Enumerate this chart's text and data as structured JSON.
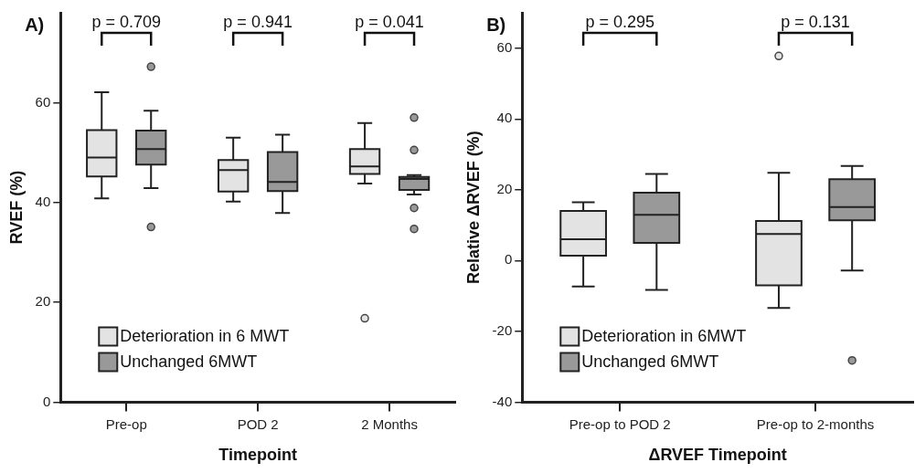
{
  "chart_data": [
    {
      "type": "box",
      "title": "A)",
      "xlabel": "Timepoint",
      "ylabel": "RVEF (%)",
      "categories": [
        "Pre-op",
        "POD 2",
        "2 Months"
      ],
      "ylim": [
        0,
        78
      ],
      "yticks": [
        0,
        20,
        40,
        60
      ],
      "legend": "bottom left",
      "grid": false,
      "annotations": [
        "p = 0.709",
        "p = 0.941",
        "p = 0.041"
      ],
      "series": [
        {
          "name": "Deterioration in 6 MWT",
          "color": "#e3e3e3",
          "boxes": [
            {
              "low": 40.8,
              "q1": 45.2,
              "median": 49.0,
              "q3": 54.5,
              "high": 62.1
            },
            {
              "low": 40.2,
              "q1": 42.2,
              "median": 46.5,
              "q3": 48.5,
              "high": 53.0
            },
            {
              "low": 43.8,
              "q1": 45.7,
              "median": 47.2,
              "q3": 50.7,
              "high": 55.9,
              "outliers": [
                16.8
              ]
            }
          ]
        },
        {
          "name": "Unchanged 6MWT",
          "color": "#999999",
          "boxes": [
            {
              "low": 42.9,
              "q1": 47.6,
              "median": 50.7,
              "q3": 54.4,
              "high": 58.4,
              "outliers": [
                67.2,
                35.1
              ]
            },
            {
              "low": 37.9,
              "q1": 42.3,
              "median": 44.1,
              "q3": 50.1,
              "high": 53.6
            },
            {
              "low": 41.6,
              "q1": 42.5,
              "median": 44.7,
              "q3": 45.1,
              "high": 45.5,
              "outliers": [
                57.0,
                50.5,
                38.9,
                34.7
              ]
            }
          ]
        }
      ]
    },
    {
      "type": "box",
      "title": "B)",
      "xlabel": "ΔRVEF Timepoint",
      "ylabel": "Relative ΔRVEF (%)",
      "categories": [
        "Pre-op to POD 2",
        "Pre-op to 2-months"
      ],
      "ylim": [
        -40,
        70
      ],
      "yticks": [
        -40,
        -20,
        0,
        20,
        40,
        60
      ],
      "legend": "bottom left",
      "grid": false,
      "annotations": [
        "p = 0.295",
        "p = 0.131"
      ],
      "series": [
        {
          "name": "Deterioration in 6MWT",
          "color": "#e3e3e3",
          "boxes": [
            {
              "low": -7.3,
              "q1": 1.4,
              "median": 6.0,
              "q3": 14.0,
              "high": 16.5
            },
            {
              "low": -13.4,
              "q1": -7.0,
              "median": 7.5,
              "q3": 11.2,
              "high": 24.8,
              "outliers": [
                57.8
              ]
            }
          ]
        },
        {
          "name": "Unchanged 6MWT",
          "color": "#999999",
          "boxes": [
            {
              "low": -8.3,
              "q1": 5.0,
              "median": 12.9,
              "q3": 19.2,
              "high": 24.5
            },
            {
              "low": -2.8,
              "q1": 11.4,
              "median": 15.1,
              "q3": 23.0,
              "high": 26.7,
              "outliers": [
                -28.2
              ]
            }
          ]
        }
      ]
    }
  ]
}
